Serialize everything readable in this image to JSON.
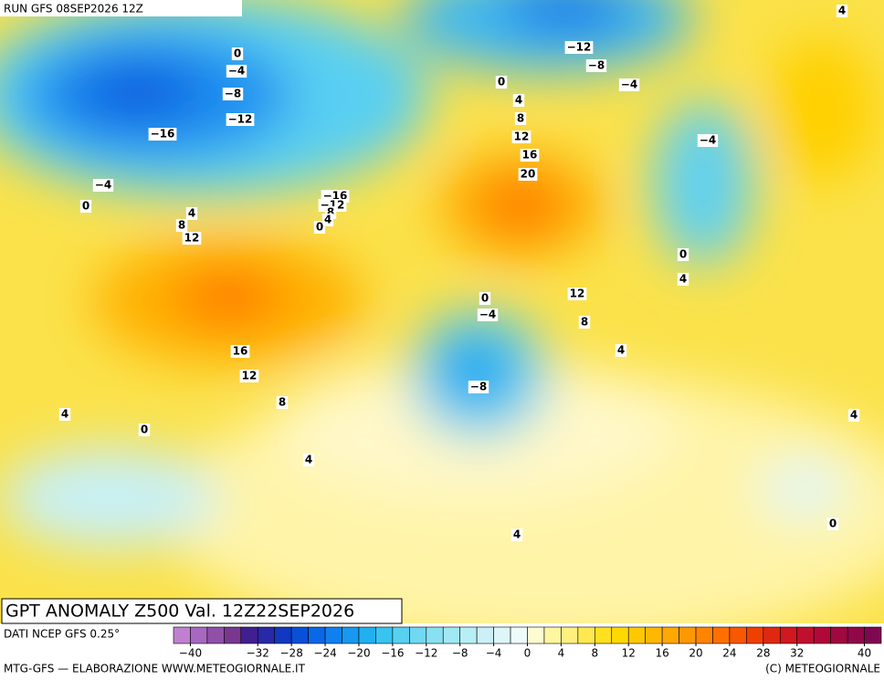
{
  "header": {
    "run": "RUN GFS 08SEP2026 12Z"
  },
  "map": {
    "title": "GPT ANOMALY Z500 Val. 12Z22SEP2026",
    "contour_labels": [
      "0",
      "−4",
      "−8",
      "−12",
      "−16",
      "−4",
      "0",
      "4",
      "8",
      "12",
      "−16",
      "−12",
      "8",
      "4",
      "0",
      "−12",
      "−8",
      "−4",
      "0",
      "4",
      "8",
      "12",
      "16",
      "20",
      "−4",
      "0",
      "4",
      "12",
      "0",
      "−4",
      "8",
      "4",
      "16",
      "12",
      "8",
      "−8",
      "4",
      "0",
      "4",
      "4",
      "0",
      "4",
      "4"
    ]
  },
  "colorbar": {
    "source": "DATI NCEP GFS 0.25°",
    "colors": [
      "#c080d0",
      "#a868c0",
      "#9050a8",
      "#783890",
      "#402090",
      "#2828a8",
      "#1038c0",
      "#0850d8",
      "#0868e8",
      "#1080f0",
      "#1898f0",
      "#20b0f0",
      "#38c4f0",
      "#58d0f0",
      "#70d8f0",
      "#88e0f0",
      "#a0e8f4",
      "#b8eef6",
      "#cceff8",
      "#ddf6fa",
      "#eefbfb",
      "#fffbd0",
      "#fff6a0",
      "#fff080",
      "#ffe850",
      "#ffe020",
      "#ffd800",
      "#ffc800",
      "#ffb800",
      "#ffa800",
      "#ff9800",
      "#ff8400",
      "#ff7000",
      "#f85800",
      "#f04000",
      "#e02810",
      "#d01820",
      "#c01030",
      "#b00838",
      "#a00840",
      "#900848",
      "#800850"
    ],
    "min": -42,
    "max": 42,
    "ticks": [
      {
        "value": -40,
        "label": "−40"
      },
      {
        "value": -32,
        "label": "−32"
      },
      {
        "value": -28,
        "label": "−28"
      },
      {
        "value": -24,
        "label": "−24"
      },
      {
        "value": -20,
        "label": "−20"
      },
      {
        "value": -16,
        "label": "−16"
      },
      {
        "value": -12,
        "label": "−12"
      },
      {
        "value": -8,
        "label": "−8"
      },
      {
        "value": -4,
        "label": "−4"
      },
      0,
      4,
      8,
      12,
      16,
      20,
      24,
      28,
      32,
      40
    ]
  },
  "footer": {
    "left": "MTG-GFS — ELABORAZIONE WWW.METEOGIORNALE.IT",
    "right": "(C) METEOGIORNALE"
  }
}
